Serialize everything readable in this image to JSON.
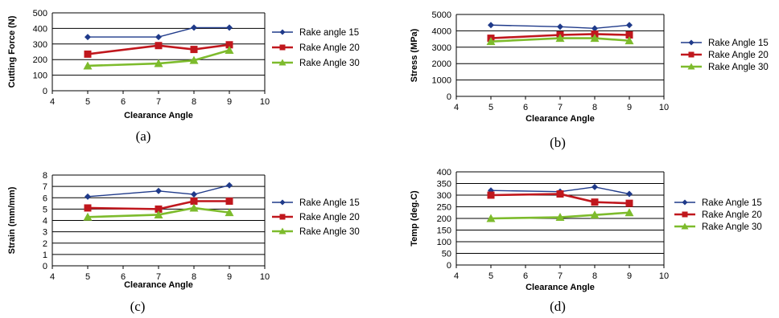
{
  "chart_data": [
    {
      "type": "line",
      "caption": "(a)",
      "xlabel": "Clearance Angle",
      "ylabel": "Cutting Force (N)",
      "xlim": [
        4,
        10
      ],
      "xticks": [
        "4",
        "5",
        "6",
        "7",
        "8",
        "9",
        "10"
      ],
      "ylim": [
        0,
        500
      ],
      "yticks": [
        "0",
        "100",
        "200",
        "300",
        "400",
        "500"
      ],
      "grid": "horizontal",
      "legend": "right",
      "x": [
        5,
        7,
        8,
        9
      ],
      "series": [
        {
          "name": "Rake angle 15",
          "color": "#1f3a8a",
          "marker": "diamond",
          "values": [
            345,
            345,
            405,
            405
          ]
        },
        {
          "name": "Rake Angle 20",
          "color": "#c0171d",
          "marker": "square",
          "values": [
            235,
            290,
            265,
            295
          ]
        },
        {
          "name": "Rake Angle 30",
          "color": "#7dbb2c",
          "marker": "triangle",
          "values": [
            160,
            175,
            195,
            260
          ]
        }
      ]
    },
    {
      "type": "line",
      "caption": "(b)",
      "xlabel": "Clearance Angle",
      "ylabel": "Stress (MPa)",
      "xlim": [
        4,
        10
      ],
      "xticks": [
        "4",
        "5",
        "6",
        "7",
        "8",
        "9",
        "10"
      ],
      "ylim": [
        0,
        5000
      ],
      "yticks": [
        "0",
        "1000",
        "2000",
        "3000",
        "4000",
        "5000"
      ],
      "grid": "horizontal",
      "legend": "right",
      "x": [
        5,
        7,
        8,
        9
      ],
      "series": [
        {
          "name": "Rake Angle 15",
          "color": "#1f3a8a",
          "marker": "diamond",
          "values": [
            4350,
            4250,
            4150,
            4350
          ]
        },
        {
          "name": "Rake Angle 20",
          "color": "#c0171d",
          "marker": "square",
          "values": [
            3550,
            3750,
            3800,
            3750
          ]
        },
        {
          "name": "Rake Angle 30",
          "color": "#7dbb2c",
          "marker": "triangle",
          "values": [
            3350,
            3550,
            3550,
            3400
          ]
        }
      ]
    },
    {
      "type": "line",
      "caption": "(c)",
      "xlabel": "Clearance Angle",
      "ylabel": "Strain (mm/mm)",
      "xlim": [
        4,
        10
      ],
      "xticks": [
        "4",
        "5",
        "6",
        "7",
        "8",
        "9",
        "10"
      ],
      "ylim": [
        0,
        8
      ],
      "yticks": [
        "0",
        "1",
        "2",
        "3",
        "4",
        "5",
        "6",
        "7",
        "8"
      ],
      "grid": "horizontal",
      "legend": "right",
      "x": [
        5,
        7,
        8,
        9
      ],
      "series": [
        {
          "name": "Rake Angle 15",
          "color": "#1f3a8a",
          "marker": "diamond",
          "values": [
            6.1,
            6.6,
            6.3,
            7.1
          ]
        },
        {
          "name": "Rake Angle 20",
          "color": "#c0171d",
          "marker": "square",
          "values": [
            5.1,
            5.0,
            5.7,
            5.7
          ]
        },
        {
          "name": "Rake Angle 30",
          "color": "#7dbb2c",
          "marker": "triangle",
          "values": [
            4.3,
            4.5,
            5.1,
            4.7
          ]
        }
      ]
    },
    {
      "type": "line",
      "caption": "(d)",
      "xlabel": "Clearance Angle",
      "ylabel": "Temp (deg.C)",
      "xlim": [
        4,
        10
      ],
      "xticks": [
        "4",
        "5",
        "6",
        "7",
        "8",
        "9",
        "10"
      ],
      "ylim": [
        0,
        400
      ],
      "yticks": [
        "0",
        "50",
        "100",
        "150",
        "200",
        "250",
        "300",
        "350",
        "400"
      ],
      "grid": "horizontal",
      "legend": "right",
      "x": [
        5,
        7,
        8,
        9
      ],
      "series": [
        {
          "name": "Rake Angle 15",
          "color": "#1f3a8a",
          "marker": "diamond",
          "values": [
            320,
            315,
            335,
            305
          ]
        },
        {
          "name": "Rake Angle 20",
          "color": "#c0171d",
          "marker": "square",
          "values": [
            300,
            305,
            270,
            265
          ]
        },
        {
          "name": "Rake Angle 30",
          "color": "#7dbb2c",
          "marker": "triangle",
          "values": [
            200,
            205,
            215,
            225
          ]
        }
      ]
    }
  ]
}
